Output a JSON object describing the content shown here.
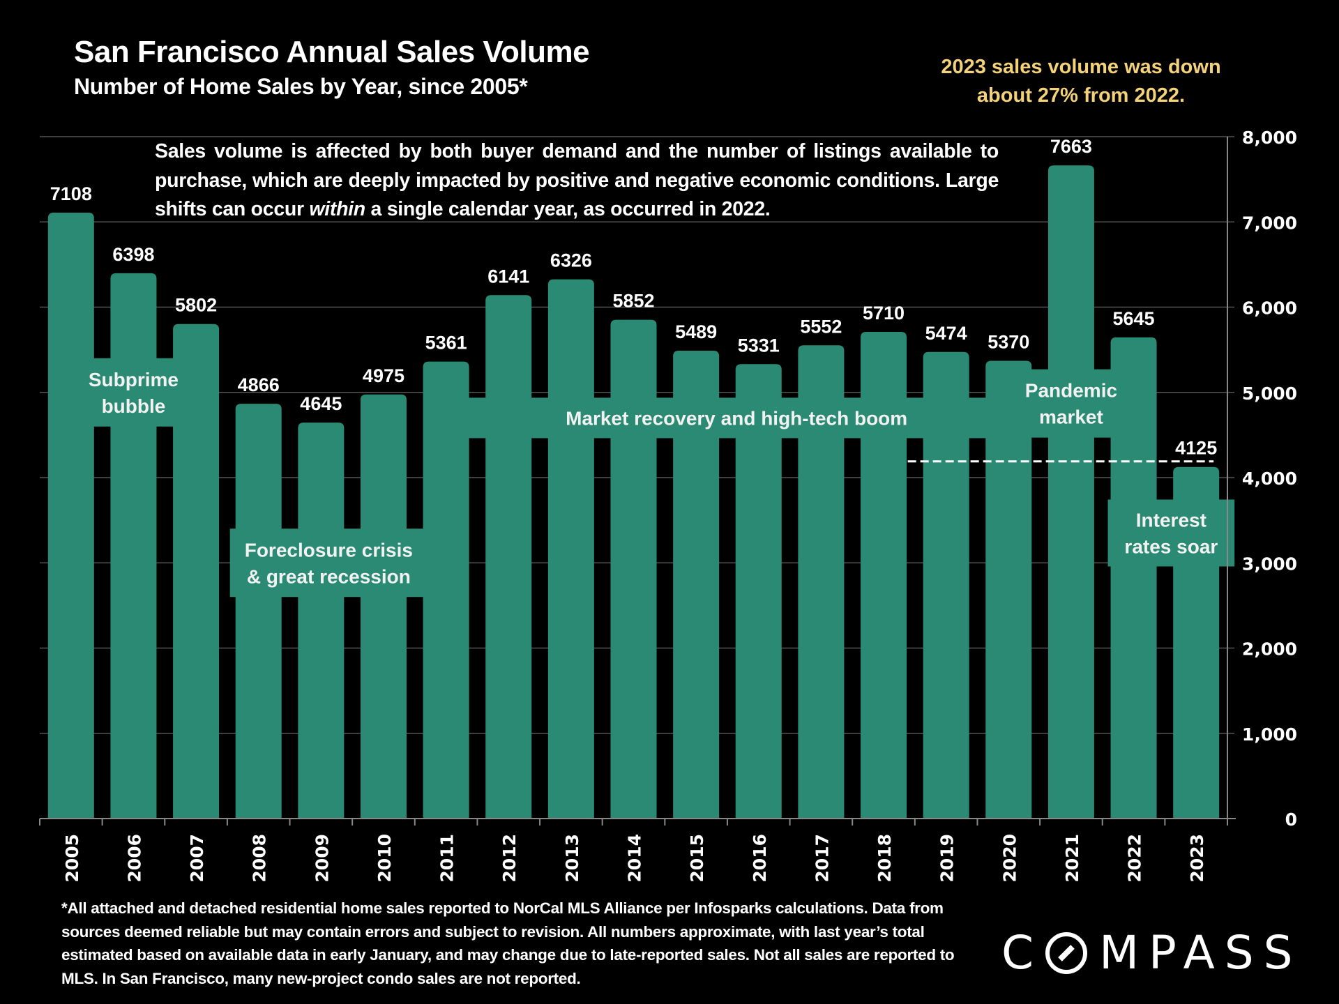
{
  "header": {
    "title": "San Francisco Annual Sales Volume",
    "subtitle": "Number of Home Sales by Year, since 2005*",
    "callout_line1": "2023 sales volume was down",
    "callout_line2": "about 27% from 2022."
  },
  "note": {
    "before": "Sales volume is affected by both buyer demand and the number of listings available to purchase, which are deeply impacted by positive and negative economic conditions. Large shifts can occur ",
    "italic": "within",
    "after": " a single calendar year, as occurred in 2022."
  },
  "footnote": "*All attached and detached residential home sales reported to NorCal MLS Alliance per Infosparks calculations. Data from sources deemed reliable but may contain errors and subject to revision. All numbers approximate, with last year’s total estimated based on available data in early January, and may change due to late-reported sales. Not all sales are reported to MLS. In San Francisco, many new-project condo sales are not reported.",
  "logo": {
    "text_before": "C",
    "text_after": "MPASS",
    "icon": "compass-o-slash-icon"
  },
  "colors": {
    "bar": "#2b8a74",
    "callout": "#f3d27a",
    "background": "#000000",
    "grid": "#555555"
  },
  "chart_data": {
    "type": "bar",
    "title": "San Francisco Annual Sales Volume",
    "subtitle": "Number of Home Sales by Year, since 2005*",
    "xlabel": "",
    "ylabel": "",
    "categories": [
      "2005",
      "2006",
      "2007",
      "2008",
      "2009",
      "2010",
      "2011",
      "2012",
      "2013",
      "2014",
      "2015",
      "2016",
      "2017",
      "2018",
      "2019",
      "2020",
      "2021",
      "2022",
      "2023"
    ],
    "values": [
      7108,
      6398,
      5802,
      4866,
      4645,
      4975,
      5361,
      6141,
      6326,
      5852,
      5489,
      5331,
      5552,
      5710,
      5474,
      5370,
      7663,
      5645,
      4125
    ],
    "data_labels": [
      "7108",
      "6398",
      "5802",
      "4866",
      "4645",
      "4975",
      "5361",
      "6141",
      "6326",
      "5852",
      "5489",
      "5331",
      "5552",
      "5710",
      "5474",
      "5370",
      "7663",
      "5645",
      "4125"
    ],
    "ylim": [
      0,
      8000
    ],
    "yticks": [
      0,
      1000,
      2000,
      3000,
      4000,
      5000,
      6000,
      7000,
      8000
    ],
    "ytick_labels": [
      "0",
      "1,000",
      "2,000",
      "3,000",
      "4,000",
      "5,000",
      "6,000",
      "7,000",
      "8,000"
    ],
    "y_axis_side": "right",
    "grid": true,
    "reference_line": {
      "value": 4125,
      "style": "dashed",
      "from": "2019",
      "to": "2023"
    },
    "annotations": [
      {
        "lines": [
          "Subprime",
          "bubble"
        ],
        "from": "2005",
        "to": "2007",
        "y_center": 5000
      },
      {
        "lines": [
          "Foreclosure crisis",
          "& great recession"
        ],
        "from": "2008",
        "to": "2010",
        "y_center": 3000
      },
      {
        "lines": [
          "Market recovery and high-tech boom"
        ],
        "from": "2011",
        "to": "2019",
        "y_center": 4700
      },
      {
        "lines": [
          "Pandemic",
          "market"
        ],
        "from": "2020",
        "to": "2022",
        "y_center": 4870
      },
      {
        "lines": [
          "Interest",
          "rates soar"
        ],
        "from": "2022",
        "to": "2023",
        "y_center": 3350
      }
    ]
  }
}
